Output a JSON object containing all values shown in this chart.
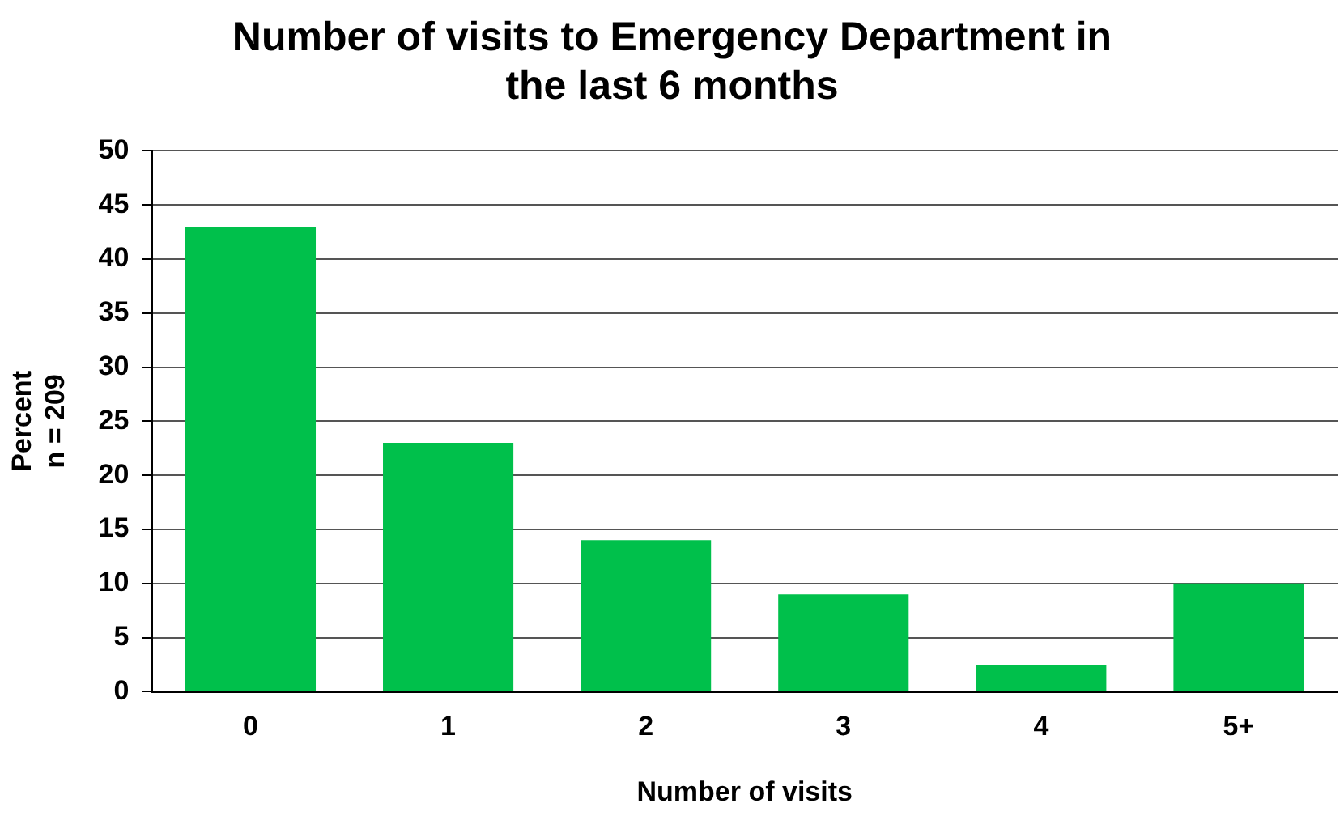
{
  "chart_data": {
    "type": "bar",
    "title": "Number of visits to Emergency Department in the last 6 months",
    "xlabel": "Number of visits",
    "ylabel": "Percent\nn = 209",
    "categories": [
      "0",
      "1",
      "2",
      "3",
      "4",
      "5+"
    ],
    "values": [
      43,
      23,
      14,
      9,
      2.5,
      10
    ],
    "color": "#00c04b",
    "ylim": [
      0,
      50
    ],
    "yticks": [
      0,
      5,
      10,
      15,
      20,
      25,
      30,
      35,
      40,
      45,
      50
    ],
    "grid": "y",
    "legend": false
  }
}
